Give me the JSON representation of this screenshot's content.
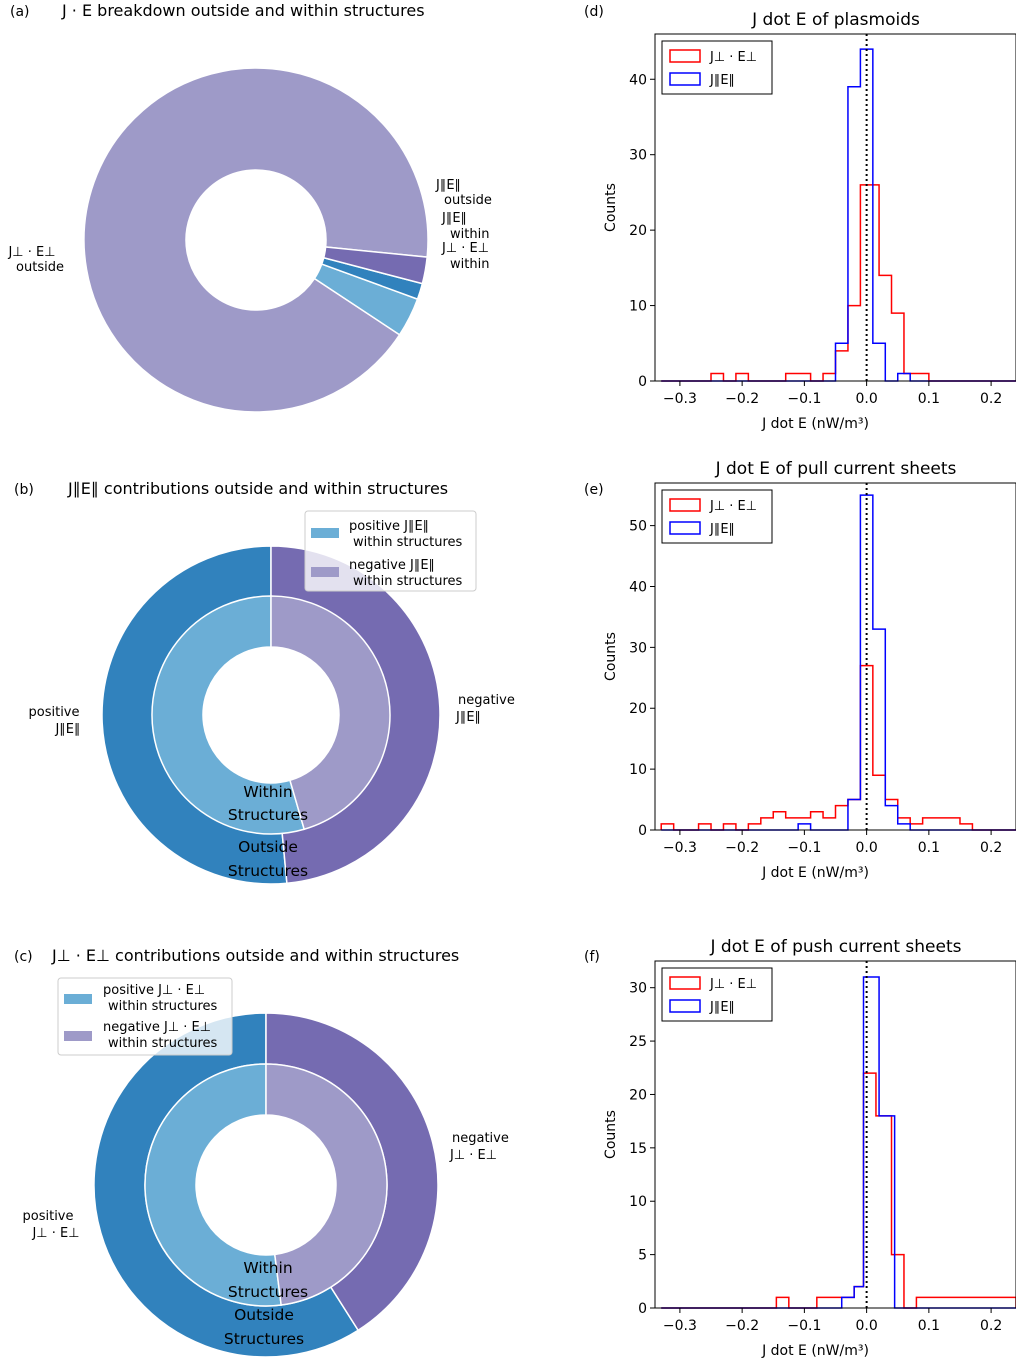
{
  "colors": {
    "perp_outside": "#9e9ac8",
    "par_outside": "#6baed6",
    "par_within": "#3182bd",
    "perp_within": "#756bb1",
    "positive_outer": "#3182bd",
    "negative_outer": "#756bb1",
    "positive_inner": "#6baed6",
    "negative_inner": "#9e9ac8",
    "hist_perp": "#ff0000",
    "hist_par": "#0000ff"
  },
  "chart_data": [
    {
      "panel": "(a)",
      "type": "pie",
      "title": "J · E breakdown outside and within structures",
      "slices": [
        {
          "key": "perp_outside",
          "label_line1": "J⊥ · E⊥",
          "label_line2": "outside",
          "value": 92.3
        },
        {
          "key": "par_outside",
          "label_line1": "J∥E∥",
          "label_line2": "outside",
          "value": 3.7
        },
        {
          "key": "par_within",
          "label_line1": "J∥E∥",
          "label_line2": "within",
          "value": 1.5
        },
        {
          "key": "perp_within",
          "label_line1": "J⊥ · E⊥",
          "label_line2": "within",
          "value": 2.5
        }
      ]
    },
    {
      "panel": "(b)",
      "type": "pie",
      "title": "J∥E∥ contributions outside and within structures",
      "outer": [
        {
          "label_line1": "positive",
          "label_line2": "J∥E∥",
          "value": 51.5
        },
        {
          "label_line1": "negative",
          "label_line2": "J∥E∥",
          "value": 48.5
        }
      ],
      "inner": [
        {
          "value": 54.5
        },
        {
          "value": 45.5
        }
      ],
      "inner_center_label": [
        "Within",
        "Structures"
      ],
      "outer_center_label": [
        "Outside",
        "Structures"
      ],
      "legend": [
        {
          "line1": "positive J∥E∥",
          "line2": "within structures"
        },
        {
          "line1": "negative J∥E∥",
          "line2": "within structures"
        }
      ]
    },
    {
      "panel": "(c)",
      "type": "pie",
      "title": "J⊥ · E⊥ contributions outside and within structures",
      "outer": [
        {
          "label_line1": "positive",
          "label_line2": "J⊥ · E⊥",
          "value": 59
        },
        {
          "label_line1": "negative",
          "label_line2": "J⊥ · E⊥",
          "value": 41
        }
      ],
      "inner": [
        {
          "value": 52
        },
        {
          "value": 48
        }
      ],
      "inner_center_label": [
        "Within",
        "Structures"
      ],
      "outer_center_label": [
        "Outside",
        "Structures"
      ],
      "legend": [
        {
          "line1": "positive J⊥ · E⊥",
          "line2": "within structures"
        },
        {
          "line1": "negative J⊥ · E⊥",
          "line2": "within structures"
        }
      ]
    },
    {
      "panel": "(d)",
      "type": "histogram",
      "title": "J dot E of plasmoids",
      "xlabel": "J dot E (nW/m³)",
      "ylabel": "Counts",
      "xlim": [
        -0.34,
        0.24
      ],
      "ylim": [
        0,
        46
      ],
      "xticks": [
        -0.3,
        -0.2,
        -0.1,
        0.0,
        0.1,
        0.2
      ],
      "xtick_labels": [
        "−0.3",
        "−0.2",
        "−0.1",
        "0.0",
        "0.1",
        "0.2"
      ],
      "yticks": [
        0,
        10,
        20,
        30,
        40
      ],
      "legend": [
        "J⊥ · E⊥",
        "J∥E∥"
      ],
      "series": [
        {
          "name": "J⊥ · E⊥",
          "color_key": "hist_perp",
          "edges": [
            -0.33,
            -0.25,
            -0.23,
            -0.21,
            -0.19,
            -0.13,
            -0.09,
            -0.07,
            -0.05,
            -0.03,
            -0.01,
            0.02,
            0.04,
            0.06,
            0.08,
            0.1,
            0.24
          ],
          "counts": [
            0,
            1,
            0,
            1,
            0,
            1,
            0,
            1,
            4,
            10,
            26,
            14,
            9,
            1,
            1,
            0
          ]
        },
        {
          "name": "J∥E∥",
          "color_key": "hist_par",
          "edges": [
            -0.33,
            -0.05,
            -0.03,
            -0.01,
            0.01,
            0.03,
            0.05,
            0.07,
            0.24
          ],
          "counts": [
            0,
            5,
            39,
            44,
            5,
            0,
            1,
            0
          ]
        }
      ],
      "vline_x": 0.0
    },
    {
      "panel": "(e)",
      "type": "histogram",
      "title": "J dot E of pull current sheets",
      "xlabel": "J dot E (nW/m³)",
      "ylabel": "Counts",
      "xlim": [
        -0.34,
        0.24
      ],
      "ylim": [
        0,
        57
      ],
      "xticks": [
        -0.3,
        -0.2,
        -0.1,
        0.0,
        0.1,
        0.2
      ],
      "xtick_labels": [
        "−0.3",
        "−0.2",
        "−0.1",
        "0.0",
        "0.1",
        "0.2"
      ],
      "yticks": [
        0,
        10,
        20,
        30,
        40,
        50
      ],
      "legend": [
        "J⊥ · E⊥",
        "J∥E∥"
      ],
      "series": [
        {
          "name": "J⊥ · E⊥",
          "color_key": "hist_perp",
          "edges": [
            -0.33,
            -0.31,
            -0.27,
            -0.25,
            -0.23,
            -0.21,
            -0.19,
            -0.17,
            -0.15,
            -0.13,
            -0.11,
            -0.09,
            -0.07,
            -0.05,
            -0.03,
            -0.01,
            0.01,
            0.03,
            0.05,
            0.07,
            0.09,
            0.11,
            0.15,
            0.17,
            0.24
          ],
          "counts": [
            1,
            0,
            1,
            0,
            1,
            0,
            1,
            2,
            3,
            2,
            2,
            3,
            2,
            4,
            5,
            27,
            9,
            5,
            2,
            1,
            2,
            2,
            1,
            0
          ]
        },
        {
          "name": "J∥E∥",
          "color_key": "hist_par",
          "edges": [
            -0.33,
            -0.11,
            -0.09,
            -0.03,
            -0.01,
            0.01,
            0.03,
            0.05,
            0.07,
            0.24
          ],
          "counts": [
            0,
            1,
            0,
            5,
            55,
            33,
            4,
            1,
            0
          ]
        }
      ],
      "vline_x": 0.0
    },
    {
      "panel": "(f)",
      "type": "histogram",
      "title": "J dot E of push current sheets",
      "xlabel": "J dot E (nW/m³)",
      "ylabel": "Counts",
      "xlim": [
        -0.34,
        0.24
      ],
      "ylim": [
        0,
        32.5
      ],
      "xticks": [
        -0.3,
        -0.2,
        -0.1,
        0.0,
        0.1,
        0.2
      ],
      "xtick_labels": [
        "−0.3",
        "−0.2",
        "−0.1",
        "0.0",
        "0.1",
        "0.2"
      ],
      "yticks": [
        0,
        5,
        10,
        15,
        20,
        25,
        30
      ],
      "legend": [
        "J⊥ · E⊥",
        "J∥E∥"
      ],
      "series": [
        {
          "name": "J⊥ · E⊥",
          "color_key": "hist_perp",
          "edges": [
            -0.33,
            -0.145,
            -0.125,
            -0.08,
            -0.02,
            -0.005,
            0.015,
            0.04,
            0.06,
            0.08,
            0.24
          ],
          "counts": [
            0,
            1,
            0,
            1,
            2,
            22,
            18,
            5,
            0,
            1
          ]
        },
        {
          "name": "J∥E∥",
          "color_key": "hist_par",
          "edges": [
            -0.33,
            -0.04,
            -0.02,
            -0.005,
            0.02,
            0.045,
            0.24
          ],
          "counts": [
            0,
            1,
            2,
            31,
            18,
            0
          ]
        }
      ],
      "vline_x": 0.0
    }
  ]
}
